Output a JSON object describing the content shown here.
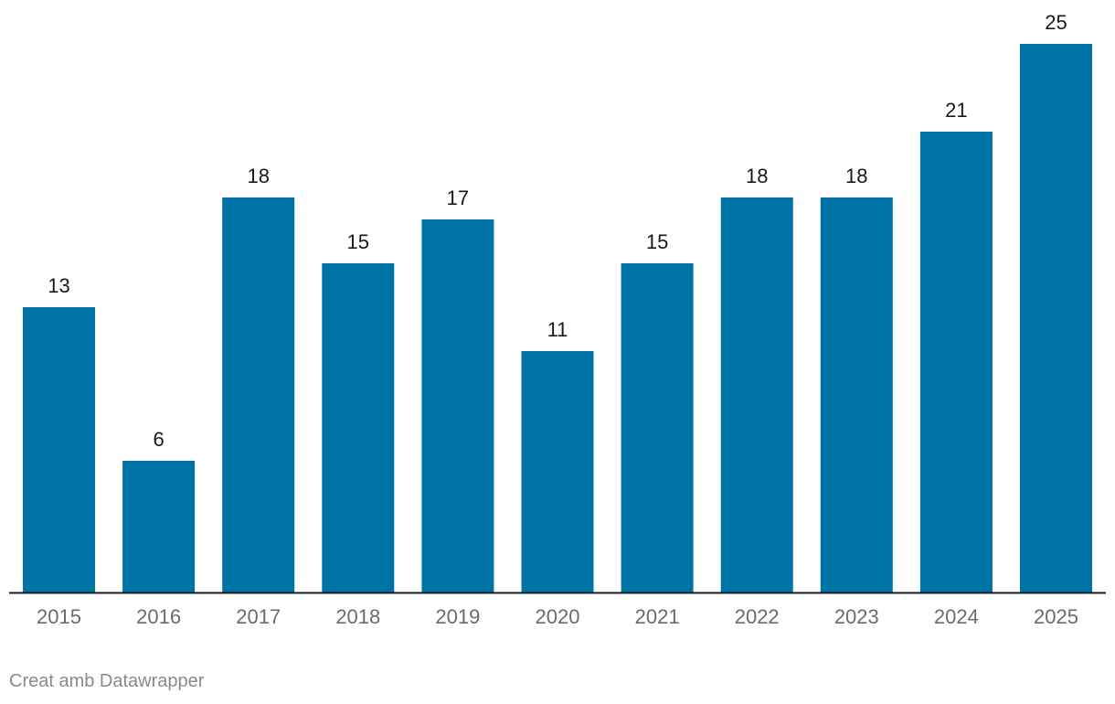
{
  "chart_data": {
    "type": "bar",
    "categories": [
      "2015",
      "2016",
      "2017",
      "2018",
      "2019",
      "2020",
      "2021",
      "2022",
      "2023",
      "2024",
      "2025"
    ],
    "values": [
      13,
      6,
      18,
      15,
      17,
      11,
      15,
      18,
      18,
      21,
      25
    ],
    "title": "",
    "xlabel": "",
    "ylabel": "",
    "ylim": [
      0,
      25
    ],
    "grid": false,
    "bar_color": "#0073a6",
    "baseline_color": "#1a1a1a",
    "data_labels": true
  },
  "footer": {
    "credit": "Creat amb Datawrapper"
  }
}
